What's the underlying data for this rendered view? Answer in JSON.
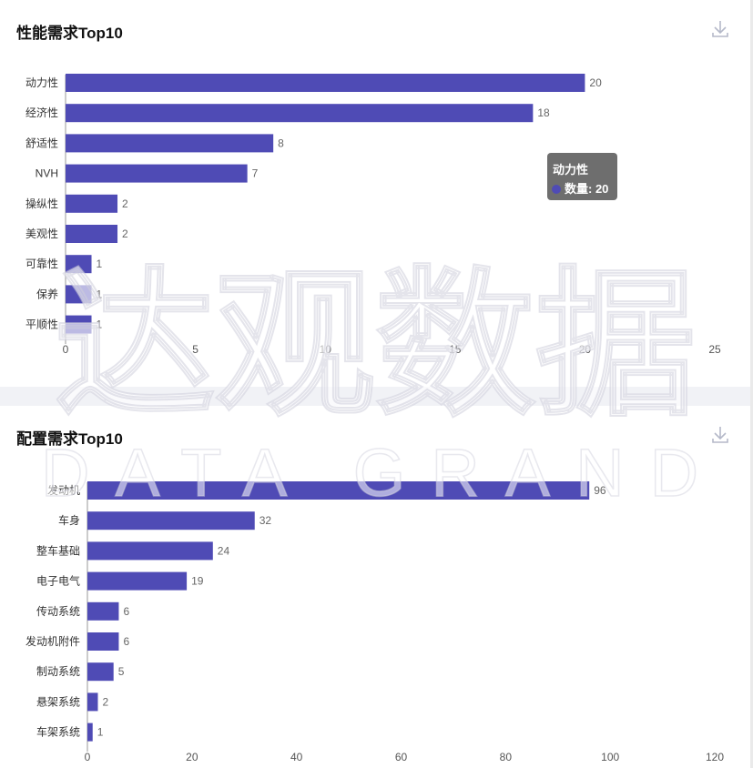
{
  "colors": {
    "bar": "#4f4bb5",
    "axis": "#555555",
    "divider": "#f1f2f6"
  },
  "icons": {
    "download": "download-icon"
  },
  "charts": [
    {
      "title": "性能需求Top10",
      "chart_data": {
        "type": "bar",
        "orientation": "horizontal",
        "categories": [
          "动力性",
          "经济性",
          "舒适性",
          "NVH",
          "操纵性",
          "美观性",
          "可靠性",
          "保养",
          "平顺性"
        ],
        "values": [
          20,
          18,
          8,
          7,
          2,
          2,
          1,
          1,
          1
        ],
        "xlim": [
          0,
          25
        ],
        "xticks": [
          0,
          5,
          10,
          15,
          20,
          25
        ],
        "grid": false
      }
    },
    {
      "title": "配置需求Top10",
      "chart_data": {
        "type": "bar",
        "orientation": "horizontal",
        "categories": [
          "发动机",
          "车身",
          "整车基础",
          "电子电气",
          "传动系统",
          "发动机附件",
          "制动系统",
          "悬架系统",
          "车架系统"
        ],
        "values": [
          96,
          32,
          24,
          19,
          6,
          6,
          5,
          2,
          1
        ],
        "xlim": [
          0,
          120
        ],
        "xticks": [
          0,
          20,
          40,
          60,
          80,
          100,
          120
        ],
        "grid": false
      }
    }
  ],
  "tooltip": {
    "title": "动力性",
    "series_label": "数量",
    "value": "20",
    "row": "数量: 20"
  },
  "watermark": {
    "cn": "达观数据",
    "en": "DATA GRAND"
  }
}
